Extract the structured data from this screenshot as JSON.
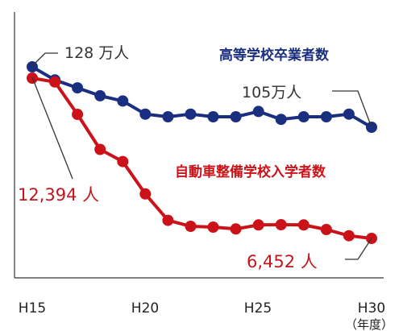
{
  "chart_data": {
    "type": "line",
    "x": [
      "H15",
      "H16",
      "H17",
      "H18",
      "H19",
      "H20",
      "H21",
      "H22",
      "H23",
      "H24",
      "H25",
      "H26",
      "H27",
      "H28",
      "H29",
      "H30"
    ],
    "x_tick_labels": [
      "H15",
      "H20",
      "H25",
      "H30"
    ],
    "x_unit": "（年度）",
    "grid": false,
    "legend_placement": "inline",
    "series": [
      {
        "name": "高等学校卒業者数",
        "color": "#1a2f80",
        "values": [
          128,
          123,
          120,
          117,
          115,
          110,
          109,
          110,
          109,
          109,
          111,
          108,
          109,
          109,
          110,
          105
        ]
      },
      {
        "name": "自動車整備学校入学者数",
        "color": "#cc1219",
        "values": [
          12394,
          12250,
          11050,
          9750,
          9300,
          8100,
          7120,
          6900,
          6870,
          6800,
          6950,
          6960,
          6950,
          6780,
          6550,
          6452
        ]
      }
    ],
    "annotations": [
      {
        "text": "128 万人",
        "series": 0,
        "index": 0
      },
      {
        "text": "105万人",
        "series": 0,
        "index": 15
      },
      {
        "text": "12,394 人",
        "series": 1,
        "index": 0
      },
      {
        "text": "6,452 人",
        "series": 1,
        "index": 15
      }
    ]
  }
}
